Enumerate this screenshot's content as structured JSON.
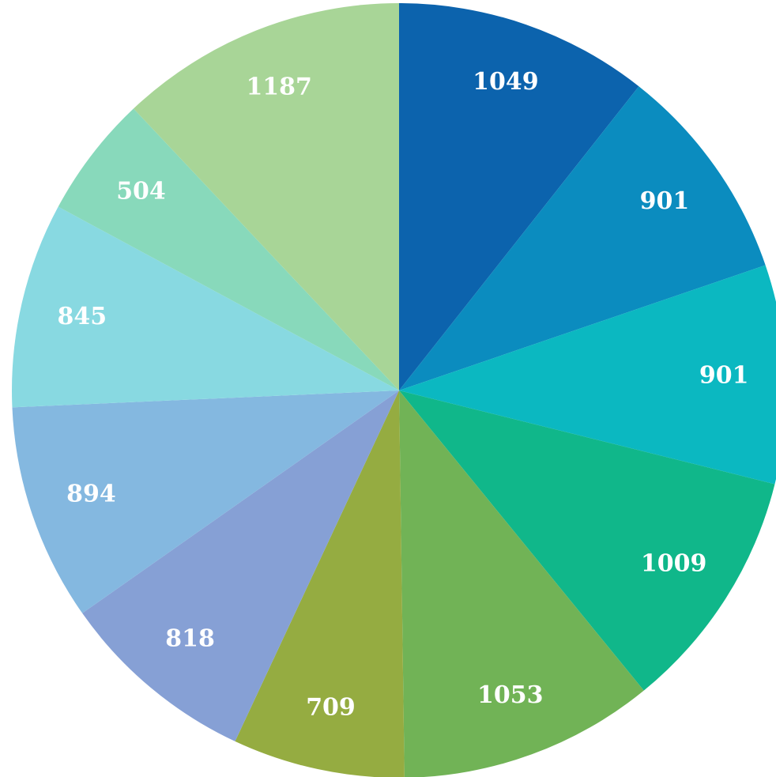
{
  "chart_data": {
    "type": "pie",
    "title": "",
    "start_angle": "12 o'clock",
    "direction": "clockwise",
    "legend": "none",
    "slices": [
      {
        "value": 1049,
        "label": "1049",
        "color": "#0c63ad"
      },
      {
        "value": 901,
        "label": "901",
        "color": "#0b8cbf"
      },
      {
        "value": 901,
        "label": "901",
        "color": "#0bb8c1"
      },
      {
        "value": 1009,
        "label": "1009",
        "color": "#10b78a"
      },
      {
        "value": 1053,
        "label": "1053",
        "color": "#71b356"
      },
      {
        "value": 709,
        "label": "709",
        "color": "#95ac41"
      },
      {
        "value": 818,
        "label": "818",
        "color": "#86a0d5"
      },
      {
        "value": 894,
        "label": "894",
        "color": "#84b8e0"
      },
      {
        "value": 845,
        "label": "845",
        "color": "#88d9e1"
      },
      {
        "value": 504,
        "label": "504",
        "color": "#88d9bb"
      },
      {
        "value": 1187,
        "label": "1187",
        "color": "#a8d597"
      }
    ]
  }
}
